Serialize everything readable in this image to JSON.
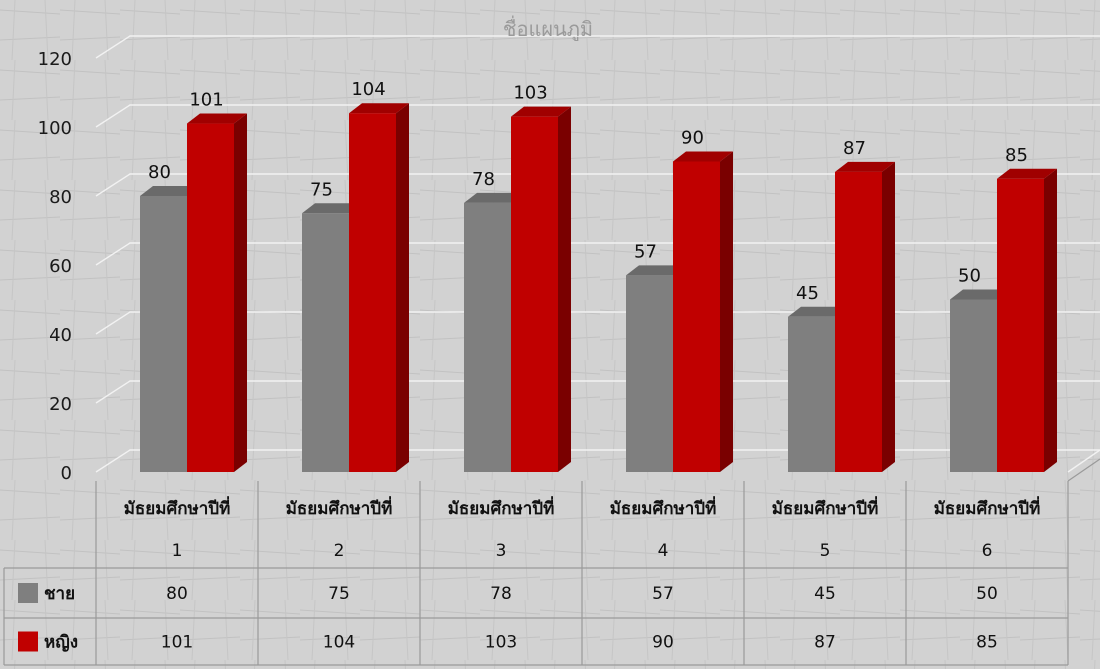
{
  "chart_data": {
    "type": "bar",
    "title": "ชื่อแผนภูมิ",
    "categories": [
      [
        "มัธยมศึกษาปีที่",
        "1"
      ],
      [
        "มัธยมศึกษาปีที่",
        "2"
      ],
      [
        "มัธยมศึกษาปีที่",
        "3"
      ],
      [
        "มัธยมศึกษาปีที่",
        "4"
      ],
      [
        "มัธยมศึกษาปีที่",
        "5"
      ],
      [
        "มัธยมศึกษาปีที่",
        "6"
      ]
    ],
    "series": [
      {
        "name": "ชาย",
        "values": [
          80,
          75,
          78,
          57,
          45,
          50
        ],
        "color": "#7f7f7f",
        "side_color": "#595959",
        "top_color": "#6a6a6a"
      },
      {
        "name": "หญิง",
        "values": [
          101,
          104,
          103,
          90,
          87,
          85
        ],
        "color": "#c00000",
        "side_color": "#7a0000",
        "top_color": "#a00000"
      }
    ],
    "ylim": [
      0,
      120
    ],
    "yticks": [
      0,
      20,
      40,
      60,
      80,
      100,
      120
    ],
    "xlabel": "",
    "ylabel": "",
    "grid": true,
    "data_table": true,
    "legend_placement": "data-table"
  }
}
